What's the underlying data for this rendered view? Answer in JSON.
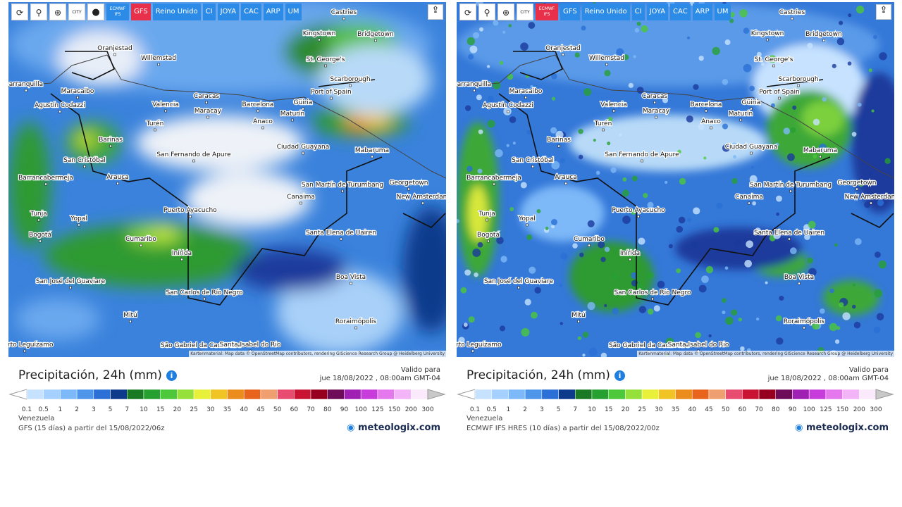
{
  "panels": [
    {
      "toolbar": {
        "city_icon": "CITY",
        "models": [
          "ECMWF IFS",
          "GFS",
          "Reino Unido",
          "CI",
          "JOYA",
          "CAC",
          "ARP",
          "UM"
        ],
        "active": 1
      },
      "map_labels": [
        "Castries",
        "Kingstown",
        "Bridgetown",
        "Oranjestad",
        "Willemstad",
        "St. George's",
        "Scarborough",
        "arranquilla",
        "Port of Spain",
        "Maracaibo",
        "Caracas",
        "Agustín Codazzi",
        "Valencia",
        "Barcelona",
        "Güiria",
        "Maracay",
        "Maturín",
        "Turén",
        "Anaco",
        "Barinas",
        "San Fernando de Apure",
        "Ciudad Guayana",
        "Mabaruma",
        "San Cristóbal",
        "Barrancabermeja",
        "Arauca",
        "San Martín de Turumbang",
        "Georgetown",
        "New Amsterdam",
        "Canaima",
        "Puerto Ayacucho",
        "Yopal",
        "Tunja",
        "Santa Elena de Uairen",
        "Bogotá",
        "Cumaribo",
        "Inírida",
        "San José del Guaviare",
        "Boa Vista",
        "San Carlos de Río Negro",
        "Mitú",
        "Roraimópolis",
        "Puerto Leguízamo",
        "São Gabriel da Cachoeira",
        "Santa Isabel do Rio"
      ],
      "attribution": "Kartenmaterial: Map data © OpenStreetMap contributors, rendering GIScience Research Group @ Heidelberg University",
      "legend": {
        "title": "Precipitación, 24h (mm)",
        "valid_label": "Valido para",
        "valid_date": "jue 18/08/2022 , 08:00am GMT-04",
        "labels": [
          "0.1",
          "0.5",
          "1",
          "2",
          "3",
          "5",
          "7",
          "10",
          "15",
          "20",
          "25",
          "30",
          "35",
          "40",
          "45",
          "50",
          "60",
          "70",
          "80",
          "90",
          "100",
          "125",
          "150",
          "200",
          "300"
        ],
        "colors": [
          "#c6e2ff",
          "#a5d0ff",
          "#7db8f8",
          "#4e96ea",
          "#2a70d6",
          "#0e3a8c",
          "#1a7a24",
          "#27a032",
          "#4cc83a",
          "#96e03c",
          "#e8f03a",
          "#f0c424",
          "#ec8c1c",
          "#e8641c",
          "#f0a070",
          "#e84c70",
          "#c81432",
          "#96001e",
          "#6e0c5a",
          "#a020b4",
          "#c83cdc",
          "#e478ec",
          "#f4b4f8",
          "#faeafc"
        ]
      },
      "region": "Venezuela",
      "source": "GFS (15 días) a partir del 15/08/2022/06z",
      "brand": "meteologix.com"
    },
    {
      "toolbar": {
        "city_icon": "CITY",
        "models": [
          "ECMWF IFS",
          "GFS",
          "Reino Unido",
          "CI",
          "JOYA",
          "CAC",
          "ARP",
          "UM"
        ],
        "active": 0
      },
      "map_labels": [
        "Castries",
        "Kingstown",
        "Bridgetown",
        "Oranjestad",
        "Willemstad",
        "St. George's",
        "Scarborough",
        "arranquilla",
        "Port of Spain",
        "Maracaibo",
        "Caracas",
        "Agustín Codazzi",
        "Valencia",
        "Barcelona",
        "Güiria",
        "Maracay",
        "Maturín",
        "Turén",
        "Anaco",
        "Barinas",
        "San Fernando de Apure",
        "Ciudad Guayana",
        "Mabaruma",
        "San Cristóbal",
        "Barrancabermeja",
        "Arauca",
        "San Martín de Turumbang",
        "Georgetown",
        "New Amsterdam",
        "Canaima",
        "Puerto Ayacucho",
        "Yopal",
        "Tunja",
        "Santa Elena de Uairen",
        "Bogotá",
        "Cumaribo",
        "Inírida",
        "San José del Guaviare",
        "Boa Vista",
        "San Carlos de Río Negro",
        "Mitú",
        "Roraimópolis",
        "Puerto Leguízamo",
        "São Gabriel da Cachoeira",
        "Santa Isabel do Rio"
      ],
      "attribution": "Kartenmaterial: Map data © OpenStreetMap contributors, rendering GIScience Research Group @ Heidelberg University",
      "legend": {
        "title": "Precipitación, 24h (mm)",
        "valid_label": "Valido para",
        "valid_date": "jue 18/08/2022 , 08:00am GMT-04",
        "labels": [
          "0.1",
          "0.5",
          "1",
          "2",
          "3",
          "5",
          "7",
          "10",
          "15",
          "20",
          "25",
          "30",
          "35",
          "40",
          "45",
          "50",
          "60",
          "70",
          "80",
          "90",
          "100",
          "125",
          "150",
          "200",
          "300"
        ],
        "colors": [
          "#c6e2ff",
          "#a5d0ff",
          "#7db8f8",
          "#4e96ea",
          "#2a70d6",
          "#0e3a8c",
          "#1a7a24",
          "#27a032",
          "#4cc83a",
          "#96e03c",
          "#e8f03a",
          "#f0c424",
          "#ec8c1c",
          "#e8641c",
          "#f0a070",
          "#e84c70",
          "#c81432",
          "#96001e",
          "#6e0c5a",
          "#a020b4",
          "#c83cdc",
          "#e478ec",
          "#f4b4f8",
          "#faeafc"
        ]
      },
      "region": "Venezuela",
      "source": "ECMWF IFS HRES (10 días) a partir del 15/08/2022/00z",
      "brand": "meteologix.com"
    }
  ]
}
